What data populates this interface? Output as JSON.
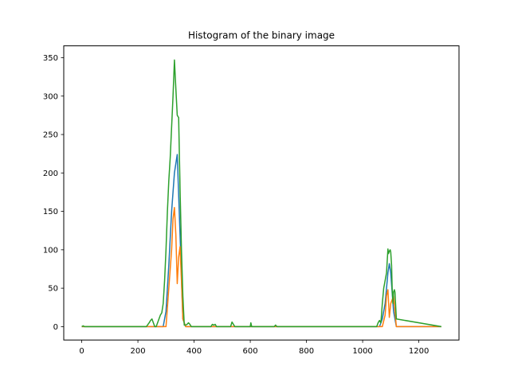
{
  "chart_data": {
    "type": "line",
    "title": "Histogram of the binary image",
    "xlabel": "",
    "ylabel": "",
    "xlim": [
      -64,
      1343
    ],
    "ylim": [
      -17.4,
      365.4
    ],
    "xticks": [
      0,
      200,
      400,
      600,
      800,
      1000,
      1200
    ],
    "yticks": [
      0,
      50,
      100,
      150,
      200,
      250,
      300,
      350
    ],
    "grid": false,
    "legend": "none",
    "series": [
      {
        "color": "#1f77b4",
        "x": [
          0,
          290,
          300,
          310,
          320,
          330,
          340,
          350,
          360,
          370,
          1060,
          1070,
          1080,
          1090,
          1095,
          1100,
          1110,
          1120,
          1280
        ],
        "y": [
          0,
          0,
          20,
          80,
          150,
          200,
          224,
          120,
          10,
          0,
          0,
          10,
          30,
          70,
          82,
          70,
          20,
          0,
          0
        ]
      },
      {
        "color": "#ff7f0e",
        "x": [
          0,
          300,
          310,
          320,
          325,
          330,
          335,
          340,
          345,
          350,
          355,
          360,
          370,
          1070,
          1080,
          1085,
          1090,
          1095,
          1100,
          1110,
          1120,
          1280
        ],
        "y": [
          0,
          0,
          50,
          100,
          140,
          155,
          120,
          56,
          90,
          104,
          60,
          10,
          0,
          0,
          15,
          40,
          48,
          12,
          30,
          40,
          0,
          0
        ],
        "points": [
          [
            0,
            0
          ],
          [
            300,
            0
          ],
          [
            310,
            50
          ],
          [
            320,
            100
          ],
          [
            325,
            140
          ],
          [
            330,
            155
          ],
          [
            335,
            120
          ],
          [
            340,
            56
          ],
          [
            345,
            90
          ],
          [
            350,
            104
          ],
          [
            355,
            60
          ],
          [
            360,
            10
          ],
          [
            370,
            0
          ],
          [
            1070,
            0
          ],
          [
            1080,
            15
          ],
          [
            1085,
            40
          ],
          [
            1090,
            48
          ],
          [
            1095,
            12
          ],
          [
            1100,
            30
          ],
          [
            1110,
            40
          ],
          [
            1120,
            0
          ],
          [
            1280,
            0
          ]
        ]
      },
      {
        "color": "#2ca02c",
        "x": [
          0,
          5,
          10,
          100,
          230,
          240,
          245,
          250,
          255,
          260,
          265,
          270,
          275,
          280,
          285,
          290,
          295,
          300,
          305,
          310,
          315,
          320,
          325,
          330,
          335,
          340,
          345,
          350,
          355,
          360,
          365,
          370,
          375,
          380,
          385,
          390,
          395,
          460,
          465,
          470,
          475,
          480,
          530,
          535,
          540,
          545,
          600,
          602,
          605,
          685,
          690,
          695,
          1040,
          1050,
          1055,
          1060,
          1065,
          1070,
          1075,
          1080,
          1085,
          1090,
          1092,
          1095,
          1098,
          1100,
          1103,
          1105,
          1108,
          1110,
          1113,
          1115,
          1120,
          1280
        ],
        "y": [
          0,
          1,
          0,
          0,
          0,
          5,
          8,
          10,
          5,
          0,
          0,
          5,
          10,
          15,
          18,
          30,
          60,
          100,
          150,
          190,
          220,
          260,
          300,
          347,
          310,
          275,
          272,
          180,
          100,
          40,
          2,
          2,
          3,
          5,
          3,
          0,
          0,
          0,
          3,
          2,
          3,
          0,
          0,
          6,
          3,
          0,
          0,
          5,
          0,
          0,
          2,
          0,
          0,
          0,
          5,
          8,
          5,
          30,
          50,
          60,
          70,
          101,
          95,
          98,
          100,
          97,
          80,
          50,
          30,
          45,
          48,
          45,
          10,
          0
        ]
      }
    ]
  }
}
